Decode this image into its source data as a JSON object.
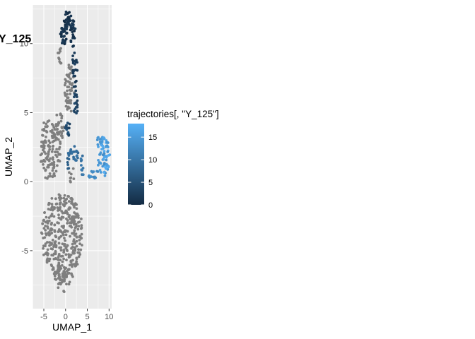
{
  "chart_data": {
    "type": "scatter",
    "title": "Y_125",
    "xlabel": "UMAP_1",
    "ylabel": "UMAP_2",
    "xlim": [
      -7.6,
      10.6
    ],
    "ylim": [
      -9.2,
      12.8
    ],
    "x_ticks": [
      -5,
      0,
      5,
      10
    ],
    "x_tick_labels": [
      "-5",
      "0",
      "5",
      "10"
    ],
    "y_ticks": [
      -5,
      0,
      5,
      10
    ],
    "y_tick_labels": [
      "-5",
      "0",
      "5",
      "10"
    ],
    "grid": true,
    "legend": {
      "title": "trajectories[, \"Y_125\"]",
      "position": "right",
      "type": "colorbar",
      "range": [
        0,
        18
      ],
      "breaks": [
        0,
        5,
        10,
        15
      ],
      "break_labels": [
        "0",
        "5",
        "10",
        "15"
      ],
      "low_color": "#132B43",
      "high_color": "#56B1F7"
    },
    "na_color": "#7f7f7f",
    "panel_background": "#ebebeb",
    "grid_color": "#ffffff",
    "series": [
      {
        "role": "cells-not-in-trajectory (grey)",
        "regions": [
          {
            "shape": "ellipse",
            "center": [
              -0.8,
              -3.9
            ],
            "radius": [
              4.8,
              3.1
            ],
            "count": 380
          },
          {
            "shape": "ellipse",
            "center": [
              -0.5,
              -7.0
            ],
            "radius": [
              2.3,
              1.0
            ],
            "count": 40
          },
          {
            "shape": "ellipse",
            "center": [
              -3.5,
              2.4
            ],
            "radius": [
              2.4,
              2.4
            ],
            "count": 130
          },
          {
            "shape": "ellipse",
            "center": [
              -1.6,
              3.8
            ],
            "radius": [
              1.3,
              1.2
            ],
            "count": 35
          },
          {
            "shape": "ellipse",
            "center": [
              0.9,
              6.6
            ],
            "radius": [
              1.1,
              1.9
            ],
            "count": 55
          },
          {
            "shape": "ellipse",
            "center": [
              -1.3,
              9.3
            ],
            "radius": [
              0.5,
              0.9
            ],
            "count": 10
          },
          {
            "shape": "ellipse",
            "center": [
              1.4,
              0.6
            ],
            "radius": [
              0.6,
              0.7
            ],
            "count": 8
          }
        ]
      },
      {
        "role": "trajectory-pseudotime (colored)",
        "segments": [
          {
            "shape": "ellipse",
            "center": [
              0.5,
              11.8
            ],
            "radius": [
              0.9,
              0.6
            ],
            "count": 25,
            "value_range": [
              0,
              1.5
            ]
          },
          {
            "shape": "ellipse",
            "center": [
              -0.3,
              10.6
            ],
            "radius": [
              0.9,
              0.7
            ],
            "count": 30,
            "value_range": [
              0.3,
              2
            ]
          },
          {
            "shape": "ellipse",
            "center": [
              1.7,
              10.8
            ],
            "radius": [
              0.6,
              1.1
            ],
            "count": 28,
            "value_range": [
              0.3,
              2
            ]
          },
          {
            "shape": "ellipse",
            "center": [
              2.1,
              8.2
            ],
            "radius": [
              0.6,
              1.4
            ],
            "count": 25,
            "value_range": [
              1,
              3
            ]
          },
          {
            "shape": "ellipse",
            "center": [
              2.3,
              5.6
            ],
            "radius": [
              0.5,
              1.0
            ],
            "count": 18,
            "value_range": [
              2,
              4
            ]
          },
          {
            "shape": "ellipse",
            "center": [
              0.5,
              3.9
            ],
            "radius": [
              0.8,
              0.6
            ],
            "count": 14,
            "value_range": [
              3,
              6
            ]
          },
          {
            "shape": "ellipse",
            "center": [
              1.8,
              2.0
            ],
            "radius": [
              1.2,
              0.6
            ],
            "count": 22,
            "value_range": [
              7,
              10
            ]
          },
          {
            "shape": "ellipse",
            "center": [
              0.6,
              1.3
            ],
            "radius": [
              0.5,
              0.5
            ],
            "count": 6,
            "value_range": [
              6,
              8
            ]
          },
          {
            "shape": "ellipse",
            "center": [
              3.8,
              1.2
            ],
            "radius": [
              0.4,
              1.0
            ],
            "count": 10,
            "value_range": [
              9,
              11
            ]
          },
          {
            "shape": "ellipse",
            "center": [
              6.5,
              0.5
            ],
            "radius": [
              1.5,
              0.3
            ],
            "count": 14,
            "value_range": [
              12,
              14
            ]
          },
          {
            "shape": "ellipse",
            "center": [
              8.8,
              1.8
            ],
            "radius": [
              1.5,
              1.5
            ],
            "count": 60,
            "value_range": [
              13,
              18
            ]
          },
          {
            "shape": "ellipse",
            "center": [
              7.7,
              2.9
            ],
            "radius": [
              0.8,
              0.4
            ],
            "count": 10,
            "value_range": [
              14,
              17
            ]
          }
        ]
      }
    ]
  }
}
